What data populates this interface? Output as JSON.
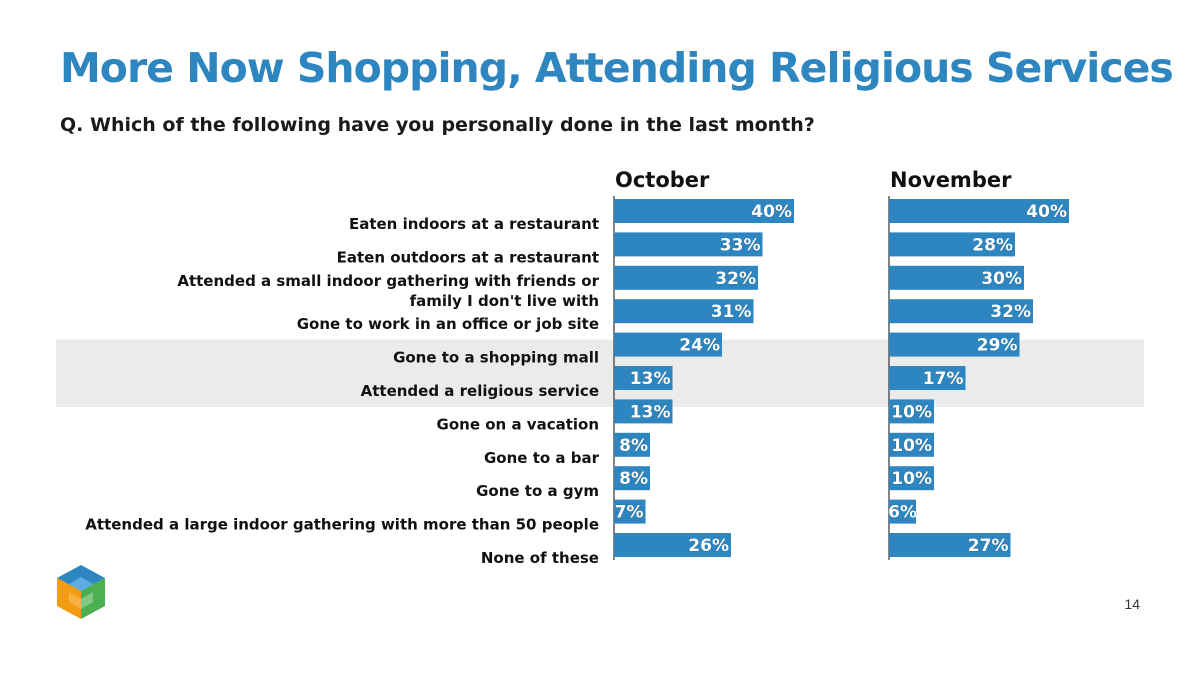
{
  "title": "More Now Shopping, Attending Religious Services",
  "subtitle": "Q. Which of the following have you personally done in the last month?",
  "page_number": "14",
  "colors": {
    "title": "#2e86c1",
    "bar": "#2e86c1",
    "highlight_band": "#ebebeb"
  },
  "logo_icon": "cube-logo-icon",
  "chart_data": {
    "type": "bar",
    "orientation": "horizontal",
    "categories": [
      "Eaten indoors at a restaurant",
      "Eaten outdoors at a restaurant",
      "Attended a small indoor gathering with friends or family I don't live with",
      "Gone to work in an office or job site",
      "Gone to a shopping mall",
      "Attended a religious service",
      "Gone on a vacation",
      "Gone to a bar",
      "Gone to a gym",
      "Attended a large indoor gathering with more than 50 people",
      "None of these"
    ],
    "category_lines": [
      [
        "Eaten indoors at a restaurant"
      ],
      [
        "Eaten outdoors at a restaurant"
      ],
      [
        "Attended a small indoor gathering with friends or",
        "family I don't live with"
      ],
      [
        "Gone to work in an office or job site"
      ],
      [
        "Gone to a shopping mall"
      ],
      [
        "Attended a religious service"
      ],
      [
        "Gone on a vacation"
      ],
      [
        "Gone to a bar"
      ],
      [
        "Gone to a gym"
      ],
      [
        "Attended a large indoor gathering with more than 50 people"
      ],
      [
        "None of these"
      ]
    ],
    "highlighted_categories": [
      "Gone to a shopping mall",
      "Attended a religious service"
    ],
    "series": [
      {
        "name": "October",
        "values": [
          40,
          33,
          32,
          31,
          24,
          13,
          13,
          8,
          8,
          7,
          26
        ]
      },
      {
        "name": "November",
        "values": [
          40,
          28,
          30,
          32,
          29,
          17,
          10,
          10,
          10,
          6,
          27
        ]
      }
    ],
    "value_suffix": "%",
    "xlim": [
      0,
      100
    ],
    "grid": false,
    "legend": "none"
  }
}
